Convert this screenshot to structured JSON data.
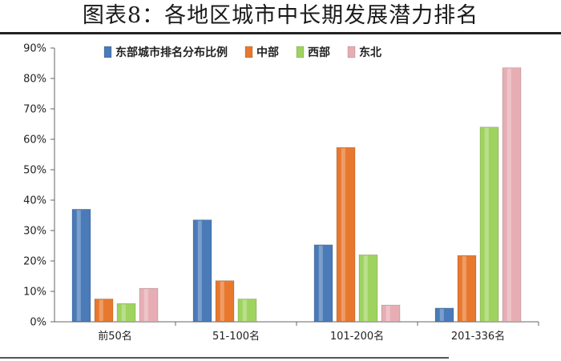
{
  "title": "图表8：各地区城市中长期发展潜力排名",
  "chart_data": {
    "type": "bar",
    "categories": [
      "前50名",
      "51-100名",
      "101-200名",
      "201-336名"
    ],
    "series": [
      {
        "name": "东部城市排名分布比例",
        "color": "#4a7ab8",
        "values": [
          37,
          33.5,
          25.3,
          4.5
        ]
      },
      {
        "name": "中部",
        "color": "#e8782e",
        "values": [
          7.5,
          13.5,
          57.3,
          21.8
        ]
      },
      {
        "name": "西部",
        "color": "#9fd360",
        "values": [
          6,
          7.5,
          22,
          64
        ]
      },
      {
        "name": "东北",
        "color": "#e6aeb4",
        "values": [
          11,
          0,
          5.5,
          83.5
        ]
      }
    ],
    "y_ticks": [
      "0%",
      "10%",
      "20%",
      "30%",
      "40%",
      "50%",
      "60%",
      "70%",
      "80%",
      "90%"
    ],
    "ylim": [
      0,
      90
    ],
    "grid": false,
    "legend_position": "top"
  }
}
